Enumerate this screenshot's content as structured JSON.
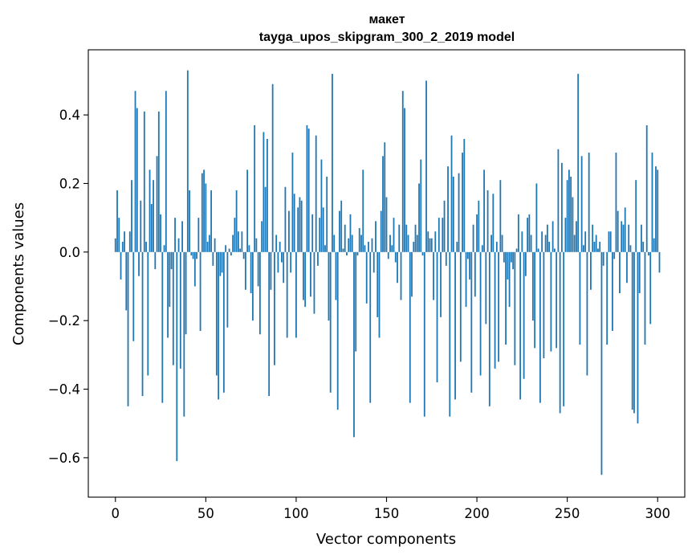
{
  "chart_data": {
    "type": "bar",
    "title_line1": "макет",
    "title_line2": "tayga_upos_skipgram_300_2_2019 model",
    "xlabel": "Vector components",
    "ylabel": "Components values",
    "xlim": [
      -15,
      315
    ],
    "ylim": [
      -0.715,
      0.59
    ],
    "xticks": [
      0,
      50,
      100,
      150,
      200,
      250,
      300
    ],
    "yticks": [
      -0.6,
      -0.4,
      -0.2,
      0.0,
      0.2,
      0.4
    ],
    "ytick_labels": [
      "−0.6",
      "−0.4",
      "−0.2",
      "0.0",
      "0.2",
      "0.4"
    ],
    "xtick_labels": [
      "0",
      "50",
      "100",
      "150",
      "200",
      "250",
      "300"
    ],
    "bar_color": "#1f77b4",
    "values": [
      0.04,
      0.18,
      0.1,
      -0.08,
      0.03,
      0.06,
      -0.17,
      -0.45,
      0.06,
      0.21,
      -0.26,
      0.47,
      0.42,
      -0.07,
      0.15,
      -0.42,
      0.41,
      0.03,
      -0.36,
      0.24,
      0.14,
      0.21,
      -0.05,
      0.28,
      0.41,
      0.11,
      -0.44,
      0.02,
      0.47,
      -0.25,
      -0.16,
      -0.05,
      -0.33,
      0.1,
      -0.61,
      0.04,
      -0.34,
      0.09,
      -0.48,
      -0.24,
      0.53,
      0.18,
      -0.01,
      -0.02,
      -0.1,
      -0.02,
      0.1,
      -0.23,
      0.23,
      0.24,
      0.2,
      0.03,
      0.05,
      0.18,
      -0.04,
      0.04,
      -0.36,
      -0.43,
      -0.07,
      -0.06,
      -0.41,
      0.02,
      -0.22,
      0.01,
      -0.01,
      0.05,
      0.1,
      0.18,
      0.06,
      0.01,
      0.06,
      -0.02,
      -0.11,
      0.24,
      0.02,
      -0.12,
      -0.2,
      0.37,
      0.04,
      -0.1,
      -0.24,
      0.09,
      0.35,
      0.19,
      0.33,
      -0.42,
      -0.11,
      0.49,
      -0.33,
      0.05,
      -0.06,
      0.03,
      -0.03,
      -0.09,
      0.19,
      -0.25,
      0.12,
      -0.06,
      0.29,
      0.17,
      -0.25,
      0.13,
      0.16,
      0.15,
      -0.14,
      -0.16,
      0.37,
      0.36,
      -0.13,
      0.11,
      -0.18,
      0.34,
      -0.04,
      0.1,
      0.27,
      0.13,
      0.02,
      0.22,
      -0.2,
      -0.41,
      0.52,
      0.05,
      -0.14,
      -0.46,
      0.12,
      0.15,
      0.01,
      0.08,
      -0.01,
      0.04,
      0.11,
      0.05,
      -0.54,
      -0.29,
      -0.01,
      0.07,
      0.05,
      0.24,
      0.02,
      -0.15,
      0.03,
      -0.44,
      0.04,
      -0.06,
      0.09,
      -0.19,
      -0.25,
      0.12,
      0.28,
      0.32,
      0.16,
      -0.02,
      0.05,
      0.02,
      0.1,
      -0.03,
      -0.09,
      0.08,
      -0.14,
      0.47,
      0.42,
      0.08,
      0.05,
      -0.44,
      -0.13,
      0.03,
      0.08,
      0.05,
      0.2,
      0.27,
      -0.01,
      -0.48,
      0.5,
      0.06,
      0.04,
      0.04,
      -0.14,
      0.06,
      -0.38,
      0.1,
      -0.19,
      0.1,
      0.15,
      -0.04,
      0.25,
      -0.48,
      0.34,
      0.22,
      -0.43,
      0.03,
      0.23,
      -0.32,
      0.29,
      0.33,
      -0.16,
      -0.02,
      -0.08,
      -0.41,
      0.08,
      -0.13,
      0.11,
      0.15,
      -0.36,
      0.02,
      0.24,
      -0.21,
      0.18,
      -0.45,
      0.05,
      0.17,
      -0.34,
      0.03,
      -0.32,
      0.21,
      0.05,
      -0.03,
      -0.27,
      -0.08,
      -0.16,
      -0.03,
      -0.05,
      -0.33,
      0.01,
      0.11,
      -0.43,
      0.06,
      -0.37,
      -0.07,
      0.1,
      0.11,
      0.05,
      -0.2,
      -0.28,
      0.2,
      0.01,
      -0.44,
      0.06,
      -0.31,
      0.05,
      0.08,
      0.03,
      -0.29,
      0.09,
      0.01,
      -0.28,
      0.3,
      -0.47,
      0.26,
      -0.45,
      0.1,
      0.21,
      0.24,
      0.22,
      0.16,
      0.05,
      0.09,
      0.52,
      -0.27,
      0.28,
      0.02,
      0.06,
      -0.36,
      0.29,
      -0.11,
      0.08,
      0.03,
      0.05,
      0.01,
      0.03,
      -0.65,
      -0.04,
      0.0,
      -0.27,
      0.06,
      0.06,
      -0.23,
      -0.02,
      0.29,
      0.12,
      -0.12,
      0.09,
      0.08,
      0.13,
      -0.09,
      0.08,
      0.02,
      -0.46,
      -0.47,
      0.21,
      -0.5,
      -0.12,
      0.08,
      0.03,
      -0.27,
      0.37,
      -0.01,
      -0.21,
      0.29,
      0.04,
      0.25,
      0.24,
      -0.06
    ]
  }
}
